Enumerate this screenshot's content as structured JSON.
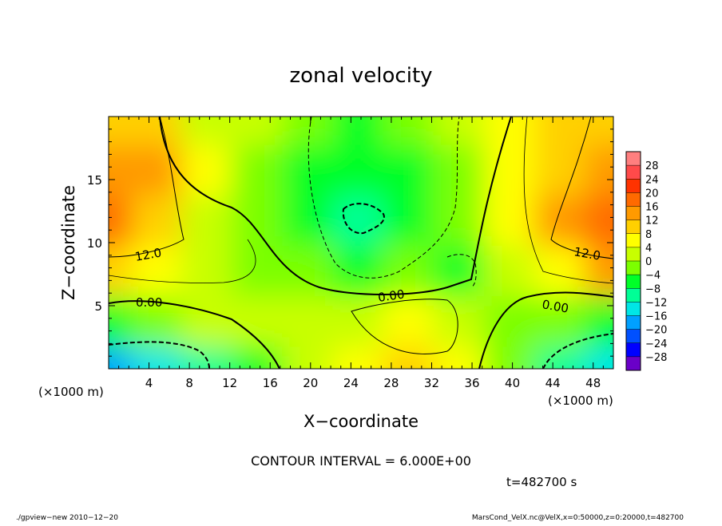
{
  "chart_data": {
    "type": "heatmap",
    "title": "zonal velocity",
    "xlabel": "X−coordinate",
    "ylabel": "Z−coordinate",
    "x_unit_left": "(×1000 m)",
    "x_unit_right": "(×1000 m)",
    "xlim": [
      0,
      50
    ],
    "ylim": [
      0,
      20
    ],
    "xticks": [
      4,
      8,
      12,
      16,
      20,
      24,
      28,
      32,
      36,
      40,
      44,
      48
    ],
    "yticks": [
      5,
      10,
      15
    ],
    "colorbar": {
      "labels": [
        28,
        24,
        20,
        16,
        12,
        8,
        4,
        0,
        -4,
        -8,
        -12,
        -16,
        -20,
        -24,
        -28
      ],
      "label_text": [
        "28",
        "24",
        "20",
        "16",
        "12",
        "8",
        "4",
        "0",
        "−4",
        "−8",
        "−12",
        "−16",
        "−20",
        "−24",
        "−28"
      ],
      "colors": [
        "#ff7f7f",
        "#ff4a4a",
        "#ff3300",
        "#ff6a00",
        "#ff9a00",
        "#ffd000",
        "#ffff00",
        "#c8ff00",
        "#7cff00",
        "#00ff28",
        "#00ff96",
        "#00e6e6",
        "#00a0ff",
        "#0050ff",
        "#0000ff",
        "#6a00c8"
      ]
    },
    "contour_labels": [
      "12.0",
      "12.0",
      "0.00",
      "0.00",
      "0.00"
    ],
    "contour_interval_text": "CONTOUR INTERVAL = 6.000E+00",
    "time_text": "t=482700 s",
    "footer_left": "./gpview−new   2010−12−20",
    "footer_right": "MarsCond_VelX.nc@VelX,x=0:50000,z=0:20000,t=482700",
    "field_samples": {
      "x": [
        0,
        5,
        10,
        15,
        20,
        25,
        30,
        35,
        40,
        45,
        50
      ],
      "z": [
        0,
        4,
        8,
        12,
        16,
        20
      ],
      "u": [
        [
          -16,
          -14,
          -8,
          -6,
          2,
          6,
          10,
          6,
          0,
          -10,
          -14
        ],
        [
          -4,
          -2,
          2,
          2,
          4,
          4,
          8,
          4,
          0,
          -2,
          -6
        ],
        [
          12,
          6,
          2,
          0,
          -2,
          -4,
          -2,
          -4,
          2,
          6,
          14
        ],
        [
          18,
          12,
          4,
          -2,
          -6,
          -10,
          -6,
          -2,
          6,
          14,
          20
        ],
        [
          16,
          14,
          6,
          0,
          -4,
          -6,
          -4,
          0,
          8,
          12,
          16
        ],
        [
          12,
          10,
          4,
          2,
          -2,
          -4,
          -2,
          2,
          6,
          10,
          12
        ]
      ]
    }
  }
}
